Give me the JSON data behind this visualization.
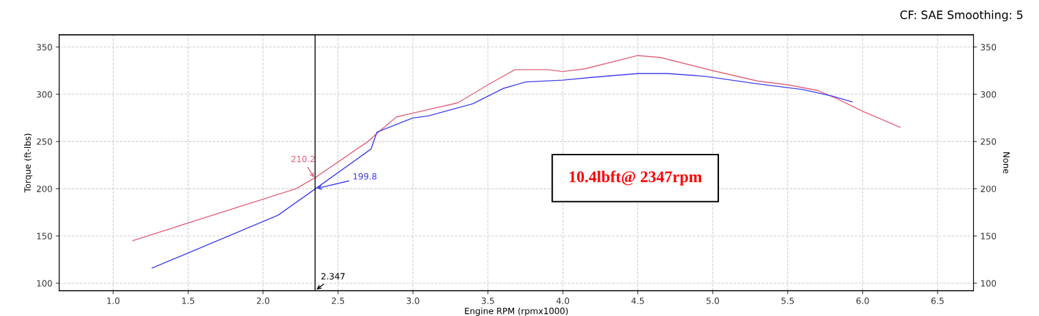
{
  "chart_data": {
    "type": "line",
    "xlabel": "Engine RPM (rpmx1000)",
    "ylabel": "Torque (ft-lbs)",
    "y2label": "None",
    "xlim": [
      0.64,
      6.74
    ],
    "xticks": [
      {
        "value": 1.0,
        "label": "1.0"
      },
      {
        "value": 1.5,
        "label": "1.5"
      },
      {
        "value": 2.0,
        "label": "2.0"
      },
      {
        "value": 2.5,
        "label": "2.5"
      },
      {
        "value": 3.0,
        "label": "3.0"
      },
      {
        "value": 3.5,
        "label": "3.5"
      },
      {
        "value": 4.0,
        "label": "4.0"
      },
      {
        "value": 4.5,
        "label": "4.5"
      },
      {
        "value": 5.0,
        "label": "5.0"
      },
      {
        "value": 5.5,
        "label": "5.5"
      },
      {
        "value": 6.0,
        "label": "6.0"
      },
      {
        "value": 6.5,
        "label": "6.5"
      }
    ],
    "ylim": [
      92,
      363
    ],
    "yticks": [
      100,
      150,
      200,
      250,
      300,
      350
    ],
    "y2lim": [
      92,
      363
    ],
    "y2ticks": [
      100,
      150,
      200,
      250,
      300,
      350
    ],
    "grid": true,
    "line_style": "solid",
    "series": [
      {
        "color": "#e0607a",
        "x": [
          1.13,
          2.22,
          2.35,
          2.7,
          2.77,
          2.89,
          3.0,
          3.3,
          3.5,
          3.68,
          3.9,
          4.0,
          4.15,
          4.5,
          4.65,
          5.0,
          5.3,
          5.5,
          5.7,
          5.82,
          6.0,
          6.25
        ],
        "values": [
          145,
          200,
          212,
          250,
          260,
          276,
          280,
          291,
          310,
          326,
          326,
          324,
          327,
          341,
          339,
          325,
          314,
          310,
          304,
          296,
          282,
          265
        ]
      },
      {
        "color": "#3a3aee",
        "x": [
          1.26,
          2.1,
          2.35,
          2.72,
          2.76,
          3.0,
          3.1,
          3.4,
          3.6,
          3.75,
          4.0,
          4.2,
          4.5,
          4.7,
          4.95,
          5.3,
          5.6,
          5.8,
          5.93
        ],
        "values": [
          116,
          172,
          200,
          242,
          260,
          275,
          277,
          290,
          306,
          313,
          315,
          318,
          322,
          322,
          319,
          311,
          305,
          298,
          292
        ]
      }
    ],
    "ref_lines": [
      {
        "axis": "x",
        "value": 2.347,
        "label": "2.347",
        "color": "#000000"
      }
    ],
    "annotations": [
      {
        "text": "210.2",
        "x": 2.347,
        "y": 210.2
      },
      {
        "text": "199.8",
        "x": 2.347,
        "y": 199.8
      },
      "CF: SAE Smoothing: 5",
      "10.4lbft@ 2347rpm"
    ]
  }
}
